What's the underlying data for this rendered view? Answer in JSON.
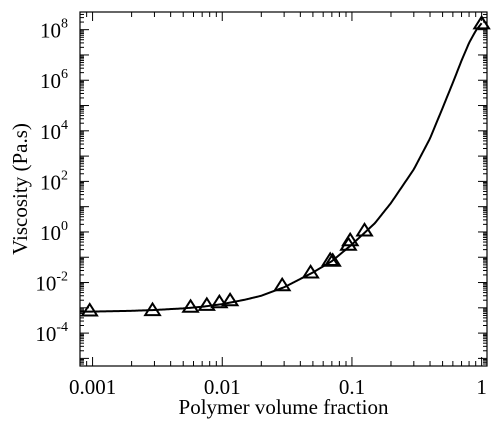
{
  "chart_data": {
    "type": "scatter",
    "xlabel": "Polymer volume fraction",
    "ylabel": "Viscosity  (Pa.s)",
    "x_scale": "log",
    "y_scale": "log",
    "xlim": [
      0.0008,
      1.1
    ],
    "ylim": [
      5e-06,
      500000000
    ],
    "grid": false,
    "x_ticks": [
      {
        "value": 0.001,
        "label": "0.001"
      },
      {
        "value": 0.01,
        "label": "0.01"
      },
      {
        "value": 0.1,
        "label": "0.1"
      },
      {
        "value": 1,
        "label": "1"
      }
    ],
    "y_ticks": [
      {
        "value": 0.0001,
        "base": "10",
        "exp": "-4"
      },
      {
        "value": 0.01,
        "base": "10",
        "exp": "-2"
      },
      {
        "value": 1,
        "base": "10",
        "exp": "0"
      },
      {
        "value": 100,
        "base": "10",
        "exp": "2"
      },
      {
        "value": 10000,
        "base": "10",
        "exp": "4"
      },
      {
        "value": 1000000,
        "base": "10",
        "exp": "6"
      },
      {
        "value": 100000000,
        "base": "10",
        "exp": "8"
      }
    ],
    "series": [
      {
        "marker": "triangle-open",
        "x": [
          0.00095,
          0.0029,
          0.0057,
          0.0076,
          0.0095,
          0.0115,
          0.029,
          0.048,
          0.068,
          0.071,
          0.094,
          0.097,
          0.125,
          1.0
        ],
        "y": [
          0.00075,
          0.00078,
          0.00105,
          0.00125,
          0.0016,
          0.0019,
          0.0075,
          0.024,
          0.075,
          0.07,
          0.3,
          0.45,
          1.1,
          170000000
        ]
      }
    ],
    "fit_curve": {
      "x": [
        0.0008,
        0.001,
        0.002,
        0.003,
        0.005,
        0.007,
        0.01,
        0.015,
        0.02,
        0.03,
        0.05,
        0.07,
        0.1,
        0.15,
        0.2,
        0.3,
        0.4,
        0.5,
        0.6,
        0.7,
        0.8,
        0.9,
        1.0
      ],
      "y": [
        0.0007,
        0.00071,
        0.00076,
        0.00082,
        0.00095,
        0.0011,
        0.0014,
        0.0021,
        0.003,
        0.0065,
        0.025,
        0.07,
        0.32,
        2.2,
        14,
        300,
        5000,
        80000,
        800000,
        6000000,
        30000000,
        90000000,
        180000000
      ]
    }
  }
}
